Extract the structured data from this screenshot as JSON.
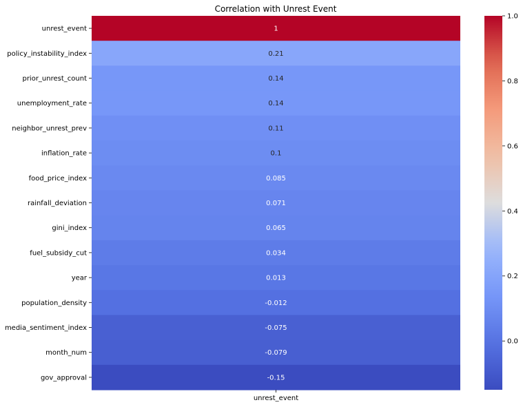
{
  "chart_data": {
    "type": "heatmap",
    "title": "Correlation with Unrest Event",
    "columns": [
      "unrest_event"
    ],
    "rows": [
      "unrest_event",
      "policy_instability_index",
      "prior_unrest_count",
      "unemployment_rate",
      "neighbor_unrest_prev",
      "inflation_rate",
      "food_price_index",
      "rainfall_deviation",
      "gini_index",
      "fuel_subsidy_cut",
      "year",
      "population_density",
      "media_sentiment_index",
      "month_num",
      "gov_approval"
    ],
    "values": [
      1.0,
      0.21,
      0.14,
      0.14,
      0.11,
      0.1,
      0.085,
      0.071,
      0.065,
      0.034,
      0.013,
      -0.012,
      -0.075,
      -0.079,
      -0.15
    ],
    "value_labels": [
      "1",
      "0.21",
      "0.14",
      "0.14",
      "0.11",
      "0.1",
      "0.085",
      "0.071",
      "0.065",
      "0.034",
      "0.013",
      "-0.012",
      "-0.075",
      "-0.079",
      "-0.15"
    ],
    "colormap": "coolwarm",
    "vmin": -0.15,
    "vmax": 1.0,
    "colorbar_ticks": [
      1.0,
      0.8,
      0.6,
      0.4,
      0.2,
      0.0
    ],
    "colorbar_tick_labels": [
      "1.0",
      "0.8",
      "0.6",
      "0.4",
      "0.2",
      "0.0"
    ]
  }
}
